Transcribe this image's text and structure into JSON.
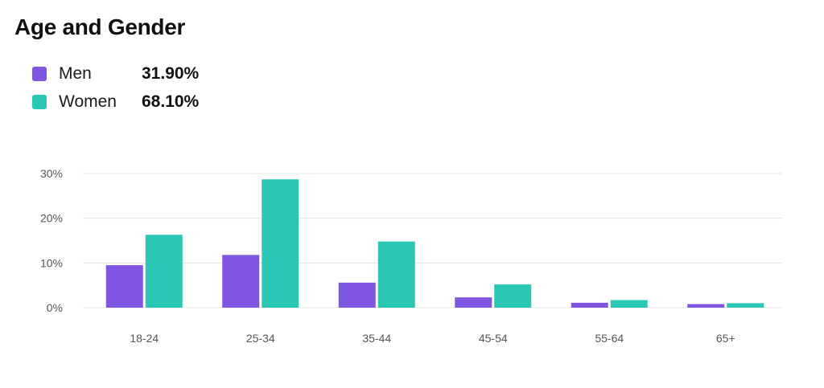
{
  "colors": {
    "men": "#7f56e0",
    "women": "#2ac8b4",
    "grid": "#e6e6e6",
    "tick_text": "#555555"
  },
  "legend": [
    {
      "label": "Men",
      "percent": "31.90%",
      "color": "#7f56e0"
    },
    {
      "label": "Women",
      "percent": "68.10%",
      "color": "#2ac8b4"
    }
  ],
  "chart_data": {
    "type": "bar",
    "title": "Age and Gender",
    "xlabel": "",
    "ylabel": "",
    "categories": [
      "18-24",
      "25-34",
      "35-44",
      "45-54",
      "55-64",
      "65+"
    ],
    "series": [
      {
        "name": "Men",
        "color": "#7f56e0",
        "values": [
          9.5,
          11.8,
          5.6,
          2.3,
          1.1,
          0.8
        ]
      },
      {
        "name": "Women",
        "color": "#2ac8b4",
        "values": [
          16.3,
          28.7,
          14.8,
          5.2,
          1.7,
          1.0
        ]
      }
    ],
    "ylim": [
      0,
      30
    ],
    "yticks": [
      0,
      10,
      20,
      30
    ],
    "ytick_labels": [
      "0%",
      "10%",
      "20%",
      "30%"
    ],
    "grid": true,
    "legend_position": "top-left"
  }
}
